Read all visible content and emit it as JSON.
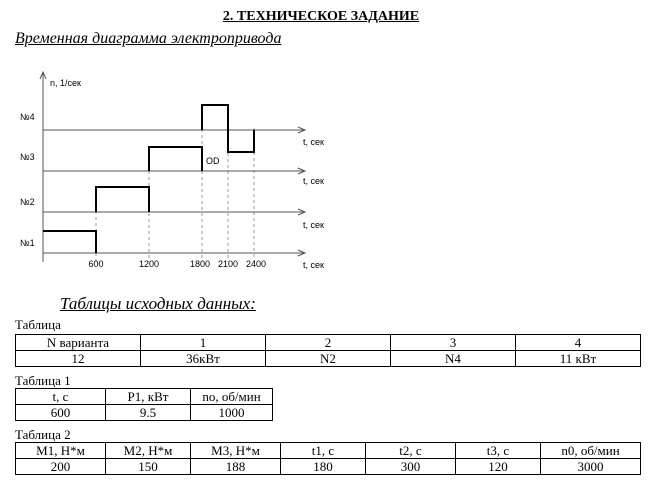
{
  "header": {
    "title": "2. ТЕХНИЧЕСКОЕ ЗАДАНИЕ",
    "subtitle": "Временная диаграмма электропривода"
  },
  "diagram": {
    "y_axis_label": "n, 1/сек",
    "levels": [
      "№4",
      "№3",
      "№2",
      "№1"
    ],
    "axis_labels": [
      "t, сек",
      "t, сек",
      "t, сек",
      "t, сек"
    ],
    "annotation": "OD",
    "x_ticks": [
      "600",
      "1200",
      "1800",
      "2100",
      "2400"
    ]
  },
  "tables_title": "Таблицы исходных данных:",
  "tables": [
    {
      "caption": "Таблица",
      "header": [
        "N варианта",
        "1",
        "2",
        "3",
        "4"
      ],
      "rows": [
        [
          "12",
          "36кВт",
          "N2",
          "N4",
          "11 кВт"
        ]
      ]
    },
    {
      "caption": "Таблица 1",
      "header": [
        "t, с",
        "P1, кВт",
        "no, об/мин"
      ],
      "rows": [
        [
          "600",
          "9.5",
          "1000"
        ]
      ]
    },
    {
      "caption": "Таблица 2",
      "header": [
        "M1, Н*м",
        "M2, Н*м",
        "M3, Н*м",
        "t1, с",
        "t2, с",
        "t3, с",
        "n0, об/мин"
      ],
      "rows": [
        [
          "200",
          "150",
          "188",
          "180",
          "300",
          "120",
          "3000"
        ]
      ]
    }
  ]
}
